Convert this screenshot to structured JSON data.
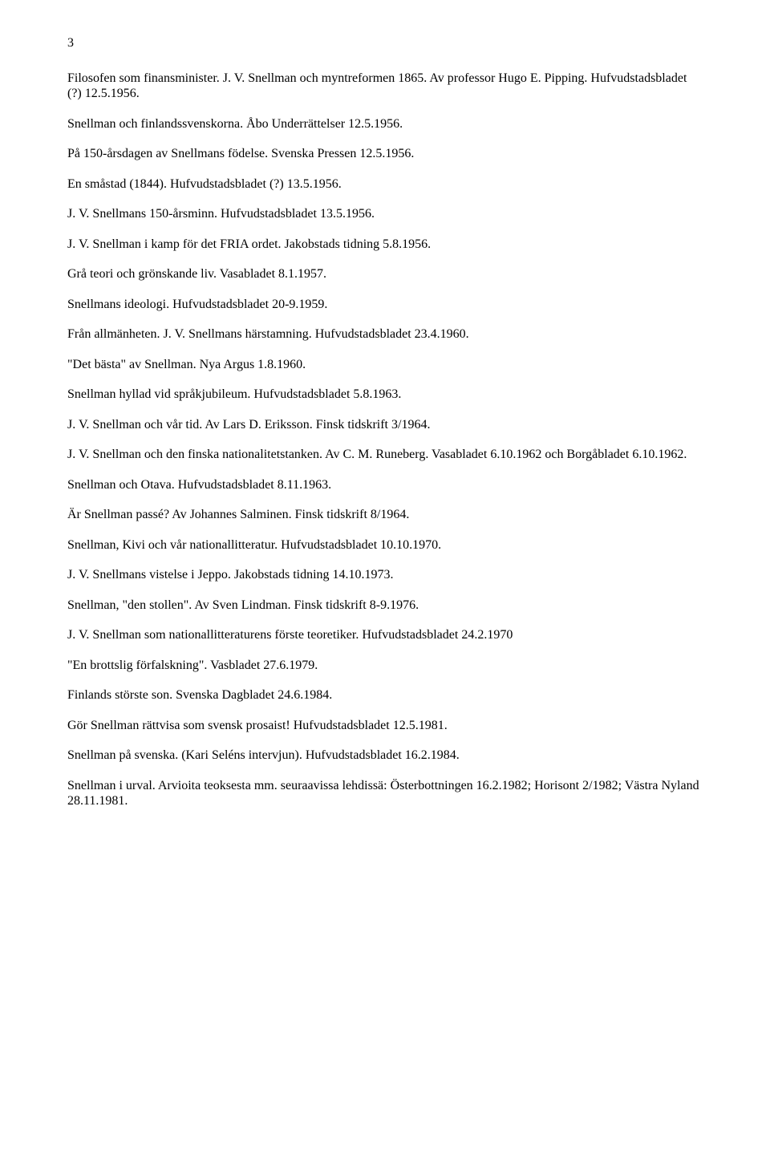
{
  "page_number": "3",
  "entries": [
    "Filosofen som finansminister. J. V. Snellman och myntreformen 1865. Av professor Hugo E. Pipping. Hufvudstadsbladet (?) 12.5.1956.",
    "Snellman och finlandssvenskorna. Åbo Underrättelser 12.5.1956.",
    "På 150-årsdagen av Snellmans födelse. Svenska Pressen 12.5.1956.",
    "En småstad (1844). Hufvudstadsbladet (?) 13.5.1956.",
    "J. V. Snellmans 150-årsminn. Hufvudstadsbladet 13.5.1956.",
    "J. V. Snellman i kamp för det FRIA ordet. Jakobstads tidning 5.8.1956.",
    "Grå teori och grönskande liv. Vasabladet 8.1.1957.",
    "Snellmans ideologi. Hufvudstadsbladet 20-9.1959.",
    "Från allmänheten. J. V. Snellmans härstamning. Hufvudstadsbladet 23.4.1960.",
    "\"Det bästa\" av Snellman. Nya Argus 1.8.1960.",
    "Snellman hyllad vid språkjubileum. Hufvudstadsbladet 5.8.1963.",
    "J. V. Snellman och vår tid. Av Lars D. Eriksson. Finsk tidskrift 3/1964.",
    "J. V. Snellman och den finska nationalitetstanken. Av C. M. Runeberg. Vasabladet 6.10.1962 och Borgåbladet 6.10.1962.",
    "Snellman och Otava. Hufvudstadsbladet 8.11.1963.",
    "Är Snellman passé? Av Johannes Salminen. Finsk tidskrift 8/1964.",
    "Snellman, Kivi och vår nationallitteratur. Hufvudstadsbladet 10.10.1970.",
    "J. V. Snellmans vistelse i Jeppo. Jakobstads tidning 14.10.1973.",
    "Snellman, \"den stollen\". Av Sven Lindman. Finsk tidskrift 8-9.1976.",
    "J. V. Snellman som nationallitteraturens förste teoretiker. Hufvudstadsbladet 24.2.1970",
    "\"En brottslig förfalskning\". Vasbladet 27.6.1979.",
    "Finlands störste son. Svenska Dagbladet 24.6.1984.",
    "Gör Snellman rättvisa som svensk prosaist! Hufvudstadsbladet 12.5.1981.",
    "Snellman på svenska. (Kari Seléns intervjun). Hufvudstadsbladet 16.2.1984.",
    "Snellman i urval. Arvioita teoksesta mm. seuraavissa lehdissä: Österbottningen 16.2.1982; Horisont 2/1982; Västra Nyland 28.11.1981."
  ]
}
